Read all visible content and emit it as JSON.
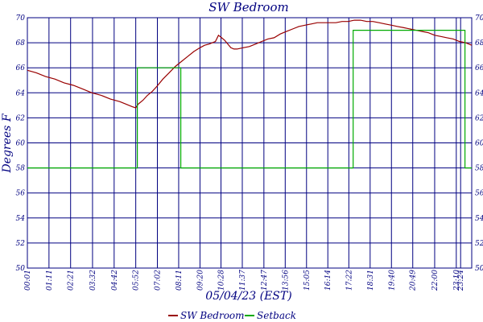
{
  "chart_data": {
    "type": "line",
    "title": "SW Bedroom",
    "xlabel": "05/04/23 (EST)",
    "ylabel": "Degrees F",
    "x_unit": "minutes",
    "xlim": [
      1,
      1440
    ],
    "ylim": [
      50,
      70
    ],
    "y_ticks": [
      50,
      52,
      54,
      56,
      58,
      60,
      62,
      64,
      66,
      68,
      70
    ],
    "x_ticks": [
      {
        "x": 1,
        "label": "00:01"
      },
      {
        "x": 71,
        "label": "01:11"
      },
      {
        "x": 141,
        "label": "02:21"
      },
      {
        "x": 212,
        "label": "03:32"
      },
      {
        "x": 282,
        "label": "04:42"
      },
      {
        "x": 352,
        "label": "05:52"
      },
      {
        "x": 422,
        "label": "07:02"
      },
      {
        "x": 491,
        "label": "08:11"
      },
      {
        "x": 560,
        "label": "09:20"
      },
      {
        "x": 628,
        "label": "10:28"
      },
      {
        "x": 697,
        "label": "11:37"
      },
      {
        "x": 767,
        "label": "12:47"
      },
      {
        "x": 836,
        "label": "13:56"
      },
      {
        "x": 905,
        "label": "15:05"
      },
      {
        "x": 974,
        "label": "16:14"
      },
      {
        "x": 1042,
        "label": "17:22"
      },
      {
        "x": 1111,
        "label": "18:31"
      },
      {
        "x": 1180,
        "label": "19:40"
      },
      {
        "x": 1249,
        "label": "20:49"
      },
      {
        "x": 1320,
        "label": "22:00"
      },
      {
        "x": 1390,
        "label": "23:10"
      },
      {
        "x": 1404,
        "label": "23:24"
      }
    ],
    "grid": true,
    "legend_position": "bottom-center",
    "series": [
      {
        "name": "SW Bedroom",
        "color": "#990000",
        "x": [
          1,
          30,
          60,
          90,
          120,
          150,
          180,
          210,
          240,
          270,
          300,
          320,
          340,
          352,
          360,
          375,
          390,
          405,
          420,
          440,
          460,
          480,
          500,
          520,
          540,
          560,
          575,
          590,
          600,
          610,
          620,
          630,
          640,
          650,
          660,
          670,
          680,
          700,
          720,
          740,
          760,
          780,
          800,
          820,
          840,
          860,
          880,
          900,
          920,
          940,
          960,
          980,
          1000,
          1020,
          1040,
          1060,
          1080,
          1100,
          1120,
          1140,
          1160,
          1180,
          1200,
          1220,
          1240,
          1260,
          1280,
          1300,
          1320,
          1340,
          1360,
          1380,
          1400,
          1420,
          1440
        ],
        "values": [
          65.8,
          65.6,
          65.3,
          65.1,
          64.8,
          64.6,
          64.3,
          64.0,
          63.8,
          63.5,
          63.3,
          63.1,
          62.9,
          62.8,
          63.1,
          63.4,
          63.8,
          64.1,
          64.5,
          65.1,
          65.6,
          66.1,
          66.5,
          66.9,
          67.3,
          67.6,
          67.8,
          67.9,
          68.0,
          68.1,
          68.6,
          68.4,
          68.2,
          67.9,
          67.6,
          67.5,
          67.5,
          67.6,
          67.7,
          67.9,
          68.1,
          68.3,
          68.4,
          68.7,
          68.9,
          69.1,
          69.3,
          69.4,
          69.5,
          69.6,
          69.6,
          69.6,
          69.6,
          69.7,
          69.7,
          69.8,
          69.8,
          69.7,
          69.7,
          69.6,
          69.5,
          69.4,
          69.3,
          69.2,
          69.1,
          69.0,
          68.9,
          68.8,
          68.6,
          68.5,
          68.4,
          68.3,
          68.1,
          68.0,
          67.8
        ]
      },
      {
        "name": "Setback",
        "color": "#00aa00",
        "x": [
          1,
          357,
          357,
          498,
          498,
          1056,
          1056,
          1418,
          1418,
          1440
        ],
        "values": [
          58,
          58,
          66,
          66,
          58,
          58,
          69,
          69,
          58,
          58
        ]
      }
    ]
  }
}
